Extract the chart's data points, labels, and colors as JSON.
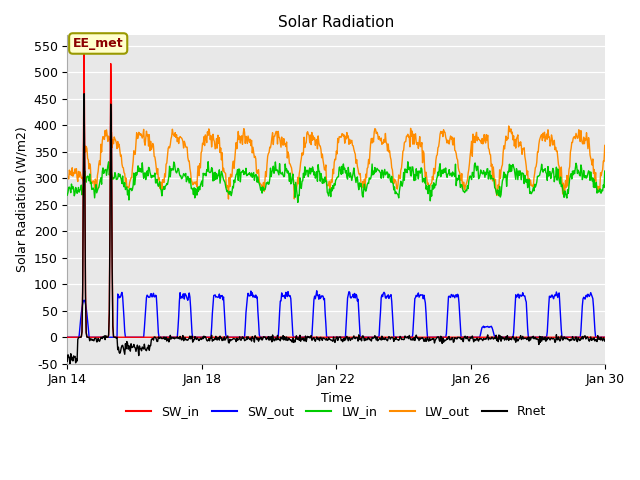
{
  "title": "Solar Radiation",
  "xlabel": "Time",
  "ylabel": "Solar Radiation (W/m2)",
  "ylim": [
    -50,
    570
  ],
  "yticks": [
    -50,
    0,
    50,
    100,
    150,
    200,
    250,
    300,
    350,
    400,
    450,
    500,
    550
  ],
  "xtick_labels": [
    "Jan 14",
    "Jan 18",
    "Jan 22",
    "Jan 26",
    "Jan 30"
  ],
  "plot_bg_color": "#e8e8e8",
  "fig_bg_color": "#ffffff",
  "grid_color": "white",
  "annotation_text": "EE_met",
  "series": {
    "SW_in": {
      "color": "#ff0000",
      "lw": 1.0
    },
    "SW_out": {
      "color": "#0000ff",
      "lw": 1.0
    },
    "LW_in": {
      "color": "#00cc00",
      "lw": 1.0
    },
    "LW_out": {
      "color": "#ff8c00",
      "lw": 1.0
    },
    "Rnet": {
      "color": "#000000",
      "lw": 1.0
    }
  }
}
